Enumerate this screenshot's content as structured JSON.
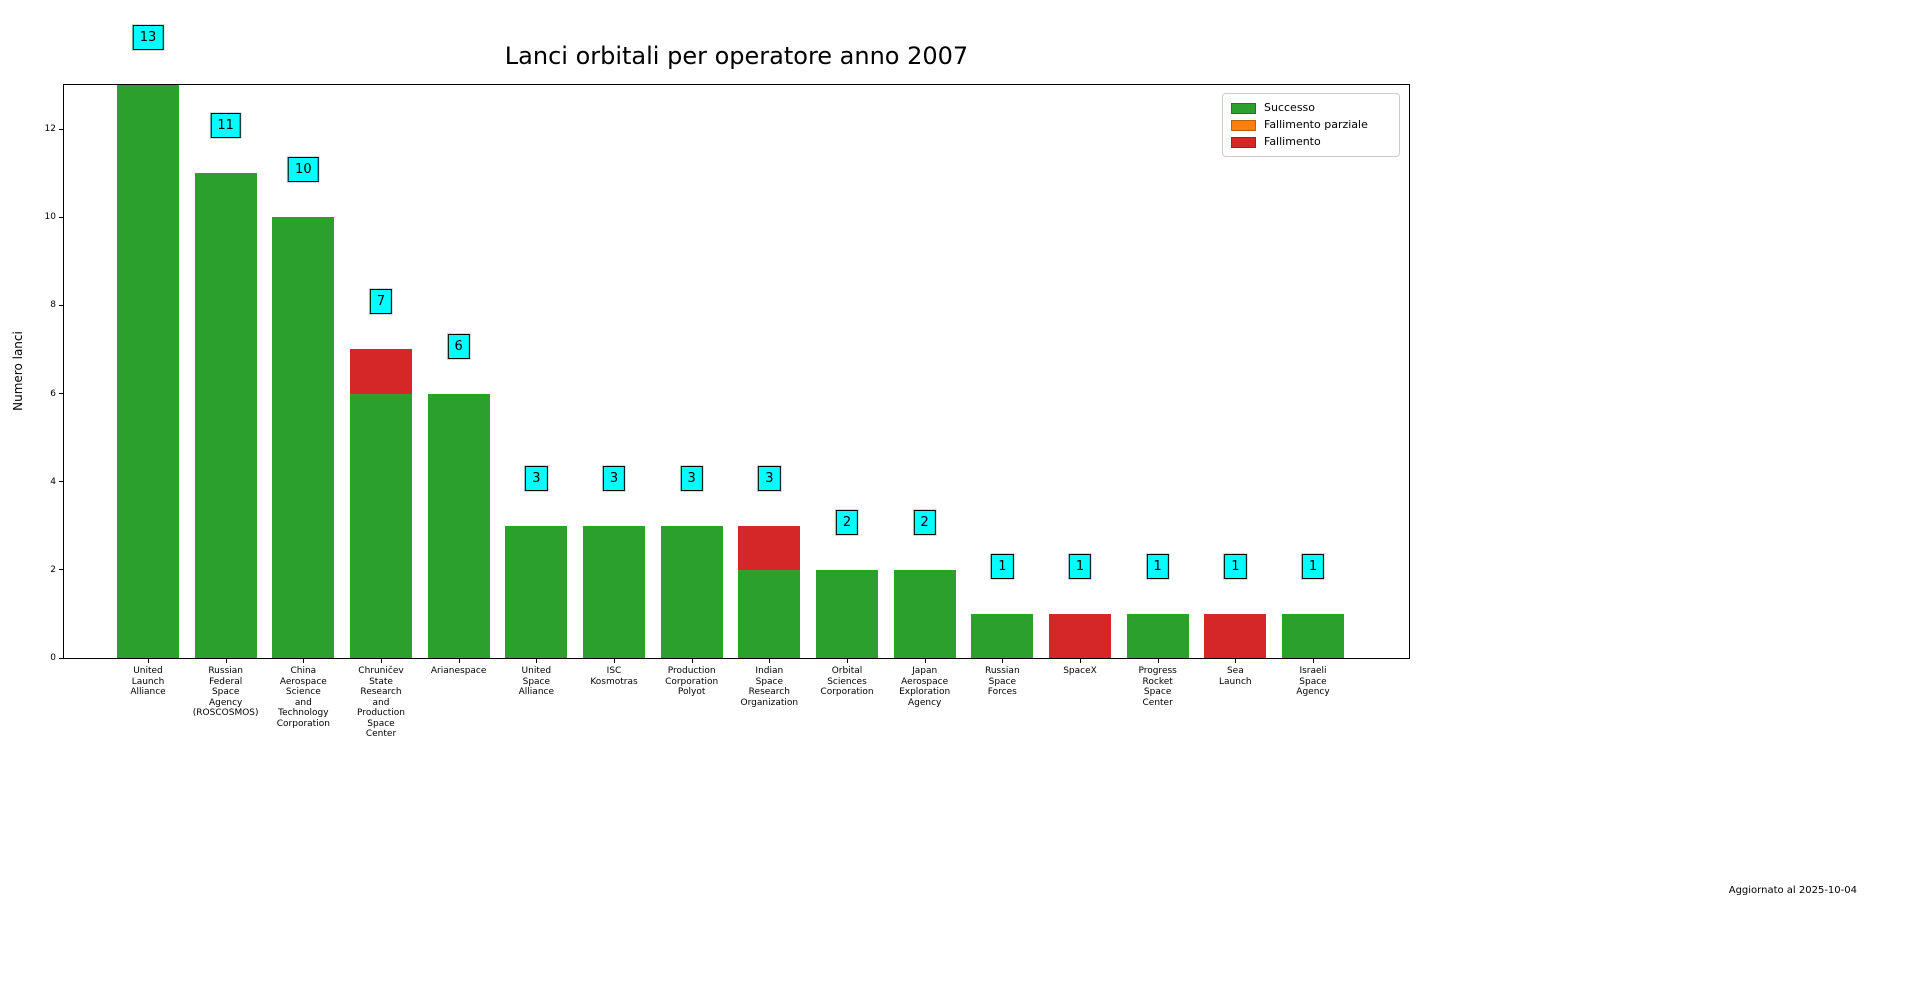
{
  "chart_data": {
    "type": "bar",
    "stacked": true,
    "title": "Lanci orbitali per operatore anno 2007",
    "ylabel": "Numero lanci",
    "footer": "Aggiornato al 2025-10-04",
    "ylim": [
      0,
      13
    ],
    "yticks": [
      0,
      2,
      4,
      6,
      8,
      10,
      12
    ],
    "grid": false,
    "legend_position": "upper right",
    "value_label_style": {
      "background": "#00ffff",
      "border": "#000000"
    },
    "legend": [
      {
        "label": "Successo",
        "color": "#2ca02c"
      },
      {
        "label": "Fallimento parziale",
        "color": "#ff7f0e"
      },
      {
        "label": "Fallimento",
        "color": "#d62728"
      }
    ],
    "categories": [
      "United\nLaunch\nAlliance",
      "Russian\nFederal\nSpace\nAgency\n(ROSCOSMOS)",
      "China\nAerospace\nScience\nand\nTechnology\nCorporation",
      "Chruničev\nState\nResearch\nand\nProduction\nSpace\nCenter",
      "Arianespace",
      "United\nSpace\nAlliance",
      "ISC\nKosmotras",
      "Production\nCorporation\nPolyot",
      "Indian\nSpace\nResearch\nOrganization",
      "Orbital\nSciences\nCorporation",
      "Japan\nAerospace\nExploration\nAgency",
      "Russian\nSpace\nForces",
      "SpaceX",
      "Progress\nRocket\nSpace\nCenter",
      "Sea\nLaunch",
      "Israeli\nSpace\nAgency"
    ],
    "series": [
      {
        "name": "Successo",
        "color": "#2ca02c",
        "values": [
          13,
          11,
          10,
          6,
          6,
          3,
          3,
          3,
          2,
          2,
          2,
          1,
          0,
          1,
          0,
          1
        ]
      },
      {
        "name": "Fallimento parziale",
        "color": "#ff7f0e",
        "values": [
          0,
          0,
          0,
          0,
          0,
          0,
          0,
          0,
          0,
          0,
          0,
          0,
          0,
          0,
          0,
          0
        ]
      },
      {
        "name": "Fallimento",
        "color": "#d62728",
        "values": [
          0,
          0,
          0,
          1,
          0,
          0,
          0,
          0,
          1,
          0,
          0,
          0,
          1,
          0,
          1,
          0
        ]
      }
    ],
    "totals": [
      13,
      11,
      10,
      7,
      6,
      3,
      3,
      3,
      3,
      2,
      2,
      1,
      1,
      1,
      1,
      1
    ]
  }
}
